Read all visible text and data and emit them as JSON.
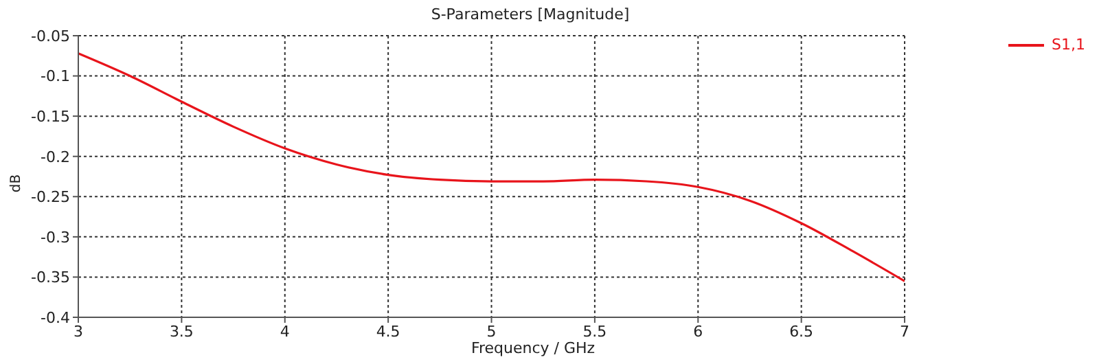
{
  "chart_data": {
    "type": "line",
    "title": "S-Parameters [Magnitude]",
    "xlabel": "Frequency / GHz",
    "ylabel": "dB",
    "x": [
      3,
      3.25,
      3.5,
      3.75,
      4,
      4.25,
      4.5,
      4.75,
      5,
      5.25,
      5.5,
      5.75,
      6,
      6.25,
      6.5,
      6.75,
      7
    ],
    "series": [
      {
        "name": "S1,1",
        "color": "#e8141b",
        "values": [
          -0.072,
          -0.1,
          -0.132,
          -0.163,
          -0.19,
          -0.21,
          -0.223,
          -0.229,
          -0.231,
          -0.231,
          -0.229,
          -0.231,
          -0.238,
          -0.255,
          -0.283,
          -0.318,
          -0.355
        ]
      }
    ],
    "xlim": [
      3,
      7
    ],
    "xticks": [
      3,
      3.5,
      4,
      4.5,
      5,
      5.5,
      6,
      6.5,
      7
    ],
    "ylim": [
      -0.4,
      -0.05
    ],
    "yticks": [
      -0.4,
      -0.35,
      -0.3,
      -0.25,
      -0.2,
      -0.15,
      -0.1,
      -0.05
    ],
    "grid": true,
    "legend": "top right",
    "marker": "none",
    "line_style": "solid"
  }
}
